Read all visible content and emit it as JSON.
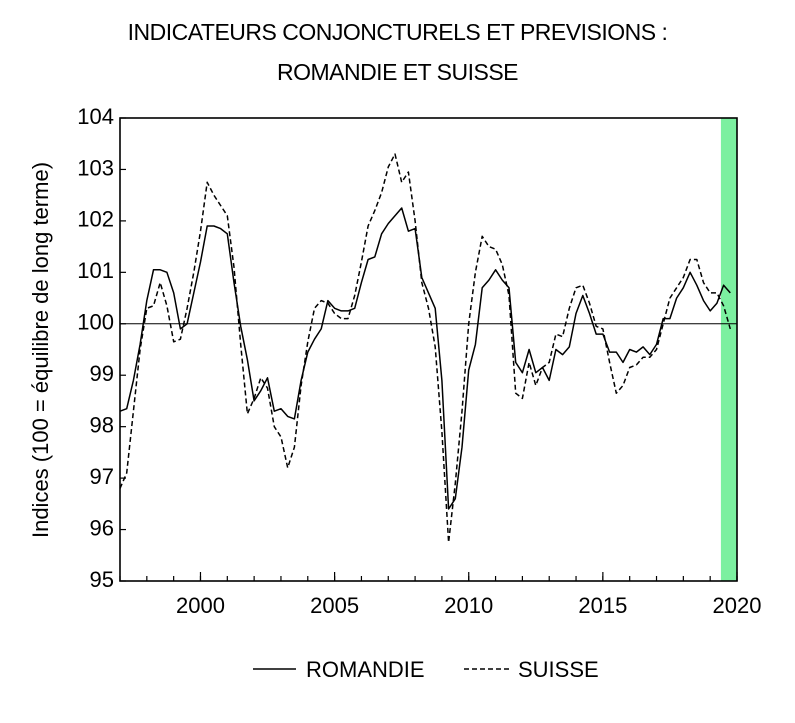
{
  "chart_data": {
    "type": "line",
    "title": "INDICATEURS CONJONCTURELS ET PREVISIONS :",
    "subtitle": "ROMANDIE ET SUISSE",
    "ylabel": "Indices (100 = équilibre de long terme)",
    "xlabel": "",
    "xlim": [
      1997,
      2020
    ],
    "ylim": [
      95,
      104
    ],
    "yticks": [
      95,
      96,
      97,
      98,
      99,
      100,
      101,
      102,
      103,
      104
    ],
    "xticks": [
      2000,
      2005,
      2010,
      2015,
      2020
    ],
    "reference_line": 100,
    "forecast_band": {
      "from": 2019.4,
      "to": 2020.0,
      "color": "#7cf0a0"
    },
    "legend_position": "bottom",
    "series": [
      {
        "name": "ROMANDIE",
        "style": "solid",
        "x": [
          1997.0,
          1997.25,
          1997.5,
          1997.75,
          1998.0,
          1998.25,
          1998.5,
          1998.75,
          1999.0,
          1999.25,
          1999.5,
          1999.75,
          2000.0,
          2000.25,
          2000.5,
          2000.75,
          2001.0,
          2001.25,
          2001.5,
          2001.75,
          2002.0,
          2002.25,
          2002.5,
          2002.75,
          2003.0,
          2003.25,
          2003.5,
          2003.75,
          2004.0,
          2004.25,
          2004.5,
          2004.75,
          2005.0,
          2005.25,
          2005.5,
          2005.75,
          2006.0,
          2006.25,
          2006.5,
          2006.75,
          2007.0,
          2007.25,
          2007.5,
          2007.75,
          2008.0,
          2008.25,
          2008.5,
          2008.75,
          2009.0,
          2009.25,
          2009.5,
          2009.75,
          2010.0,
          2010.25,
          2010.5,
          2010.75,
          2011.0,
          2011.25,
          2011.5,
          2011.75,
          2012.0,
          2012.25,
          2012.5,
          2012.75,
          2013.0,
          2013.25,
          2013.5,
          2013.75,
          2014.0,
          2014.25,
          2014.5,
          2014.75,
          2015.0,
          2015.25,
          2015.5,
          2015.75,
          2016.0,
          2016.25,
          2016.5,
          2016.75,
          2017.0,
          2017.25,
          2017.5,
          2017.75,
          2018.0,
          2018.25,
          2018.5,
          2018.75,
          2019.0,
          2019.25,
          2019.5,
          2019.75
        ],
        "values": [
          98.3,
          98.35,
          98.9,
          99.6,
          100.45,
          101.05,
          101.05,
          101.0,
          100.6,
          99.9,
          100.0,
          100.6,
          101.2,
          101.9,
          101.9,
          101.85,
          101.75,
          100.8,
          99.95,
          99.3,
          98.5,
          98.7,
          98.95,
          98.3,
          98.35,
          98.2,
          98.15,
          98.9,
          99.45,
          99.7,
          99.9,
          100.45,
          100.3,
          100.25,
          100.25,
          100.3,
          100.8,
          101.25,
          101.3,
          101.75,
          101.95,
          102.1,
          102.25,
          101.8,
          101.85,
          100.9,
          100.6,
          100.3,
          98.9,
          96.4,
          96.6,
          97.6,
          99.1,
          99.6,
          100.7,
          100.85,
          101.05,
          100.85,
          100.7,
          99.25,
          99.05,
          99.5,
          99.05,
          99.15,
          98.9,
          99.5,
          99.4,
          99.55,
          100.2,
          100.55,
          100.2,
          99.8,
          99.8,
          99.45,
          99.45,
          99.25,
          99.5,
          99.45,
          99.55,
          99.4,
          99.6,
          100.1,
          100.1,
          100.5,
          100.7,
          101.0,
          100.75,
          100.45,
          100.25,
          100.4,
          100.75,
          100.6
        ]
      },
      {
        "name": "SUISSE",
        "style": "dashed",
        "x": [
          1997.0,
          1997.25,
          1997.5,
          1997.75,
          1998.0,
          1998.25,
          1998.5,
          1998.75,
          1999.0,
          1999.25,
          1999.5,
          1999.75,
          2000.0,
          2000.25,
          2000.5,
          2000.75,
          2001.0,
          2001.25,
          2001.5,
          2001.75,
          2002.0,
          2002.25,
          2002.5,
          2002.75,
          2003.0,
          2003.25,
          2003.5,
          2003.75,
          2004.0,
          2004.25,
          2004.5,
          2004.75,
          2005.0,
          2005.25,
          2005.5,
          2005.75,
          2006.0,
          2006.25,
          2006.5,
          2006.75,
          2007.0,
          2007.25,
          2007.5,
          2007.75,
          2008.0,
          2008.25,
          2008.5,
          2008.75,
          2009.0,
          2009.25,
          2009.5,
          2009.75,
          2010.0,
          2010.25,
          2010.5,
          2010.75,
          2011.0,
          2011.25,
          2011.5,
          2011.75,
          2012.0,
          2012.25,
          2012.5,
          2012.75,
          2013.0,
          2013.25,
          2013.5,
          2013.75,
          2014.0,
          2014.25,
          2014.5,
          2014.75,
          2015.0,
          2015.25,
          2015.5,
          2015.75,
          2016.0,
          2016.25,
          2016.5,
          2016.75,
          2017.0,
          2017.25,
          2017.5,
          2017.75,
          2018.0,
          2018.25,
          2018.5,
          2018.75,
          2019.0,
          2019.25,
          2019.5,
          2019.75
        ],
        "values": [
          96.8,
          97.1,
          98.3,
          99.5,
          100.3,
          100.35,
          100.8,
          100.35,
          99.65,
          99.7,
          100.3,
          101.0,
          101.8,
          102.75,
          102.5,
          102.3,
          102.1,
          101.1,
          99.6,
          98.25,
          98.55,
          98.95,
          98.75,
          98.0,
          97.8,
          97.2,
          97.6,
          98.8,
          99.65,
          100.3,
          100.45,
          100.4,
          100.2,
          100.1,
          100.1,
          100.55,
          101.2,
          101.9,
          102.2,
          102.55,
          103.05,
          103.3,
          102.75,
          102.95,
          102.0,
          100.8,
          100.3,
          99.55,
          97.9,
          95.75,
          96.9,
          98.3,
          100.0,
          101.0,
          101.7,
          101.5,
          101.45,
          101.15,
          100.55,
          98.65,
          98.55,
          99.25,
          98.8,
          99.15,
          99.25,
          99.8,
          99.75,
          100.3,
          100.7,
          100.75,
          100.4,
          99.95,
          99.9,
          99.25,
          98.65,
          98.8,
          99.15,
          99.2,
          99.35,
          99.35,
          99.5,
          100.0,
          100.5,
          100.7,
          100.9,
          101.25,
          101.25,
          100.8,
          100.6,
          100.6,
          100.35,
          99.9
        ]
      }
    ]
  }
}
